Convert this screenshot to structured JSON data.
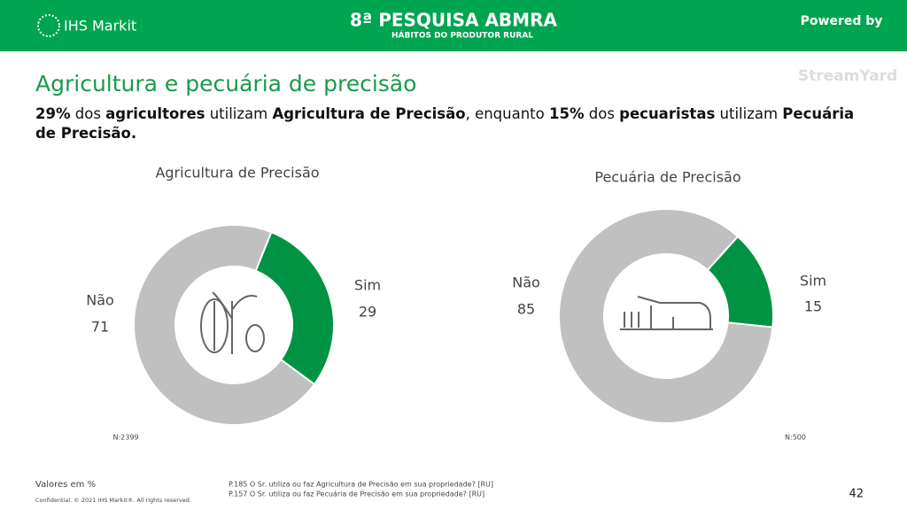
{
  "header": {
    "logo": "IHS Markit",
    "survey": "8ª PESQUISA ABMRA",
    "survey_sub": "HÁBITOS DO PRODUTOR RURAL",
    "powered": "Powered by",
    "stream": "StreamYard"
  },
  "title": "Agricultura e pecuária de precisão",
  "subtitle": [
    {
      "text": "29%",
      "bold": true
    },
    {
      "text": " dos ",
      "bold": false
    },
    {
      "text": "agricultores",
      "bold": true
    },
    {
      "text": " utilizam ",
      "bold": false
    },
    {
      "text": "Agricultura de Precisão",
      "bold": true
    },
    {
      "text": ", enquanto ",
      "bold": false
    },
    {
      "text": "15%",
      "bold": true
    },
    {
      "text": " dos ",
      "bold": false
    },
    {
      "text": "pecuaristas",
      "bold": true
    },
    {
      "text": " utilizam ",
      "bold": false
    },
    {
      "text": "Pecuária de Precisão.",
      "bold": true
    }
  ],
  "chart_data": [
    {
      "type": "donut",
      "title": "Agricultura de Precisão",
      "categories": [
        "Sim",
        "Não"
      ],
      "values": [
        29,
        71
      ],
      "colors": [
        "#009344",
        "#c0c0c0"
      ],
      "note": "N:2399"
    },
    {
      "type": "donut",
      "title": "Pecuária de Precisão",
      "categories": [
        "Sim",
        "Não"
      ],
      "values": [
        15,
        85
      ],
      "colors": [
        "#009344",
        "#c0c0c0"
      ],
      "note": "N:500"
    }
  ],
  "footer": {
    "units": "Valores em %",
    "confidential": "Confidential. © 2021 IHS Markit®. All rights reserved.",
    "q1": "P.185 O Sr. utiliza ou faz Agricultura de Precisão em sua propriedade? [RU]",
    "q2": "P.157 O Sr. utiliza ou faz Pecuária de Precisão em sua propriedade? [RU]",
    "page": "42"
  }
}
